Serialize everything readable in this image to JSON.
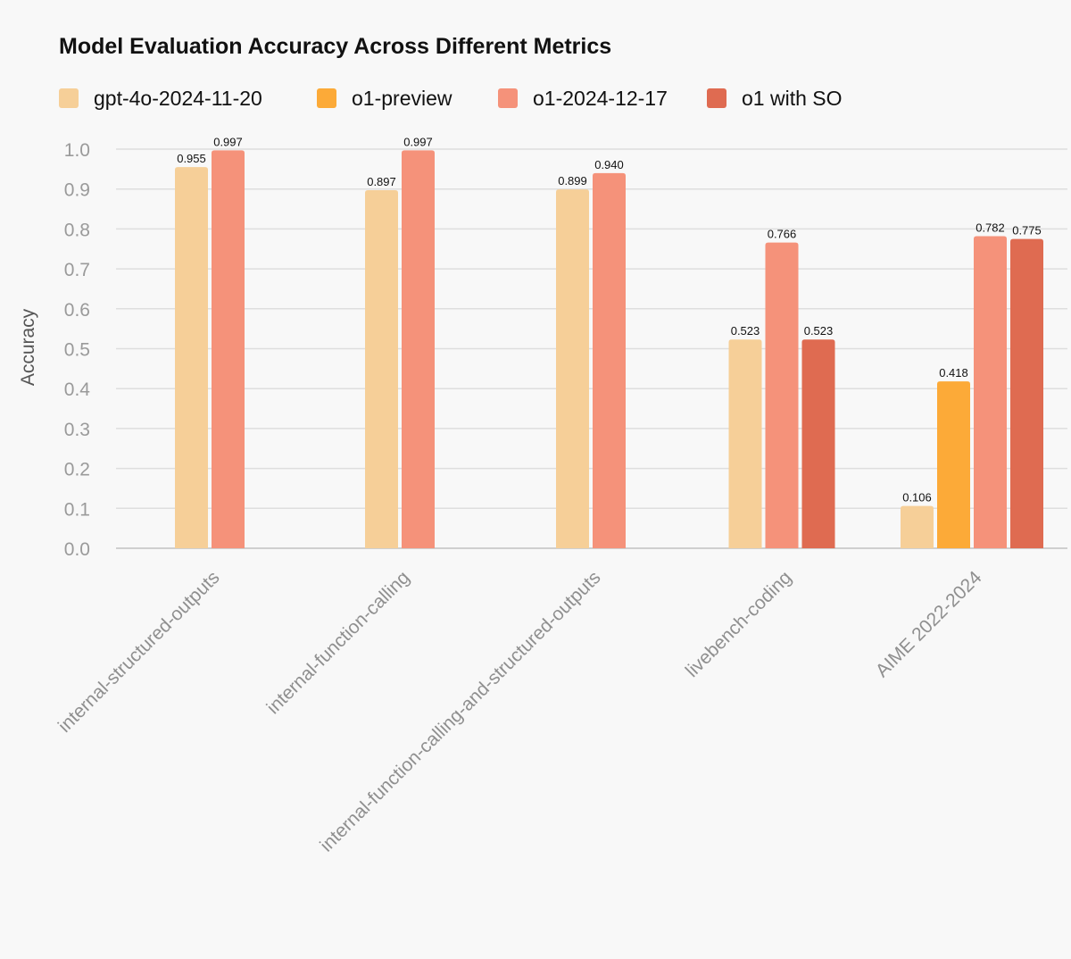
{
  "chart_data": {
    "type": "bar",
    "title": "Model Evaluation Accuracy Across Different Metrics",
    "xlabel": "",
    "ylabel": "Accuracy",
    "ylim": [
      0,
      1.0
    ],
    "yticks": [
      "0.0",
      "0.1",
      "0.2",
      "0.3",
      "0.4",
      "0.5",
      "0.6",
      "0.7",
      "0.8",
      "0.9",
      "1.0"
    ],
    "grid": true,
    "legend_position": "top-left",
    "categories": [
      "internal-structured-outputs",
      "internal-function-calling",
      "internal-function-calling-and-structured-outputs",
      "livebench-coding",
      "AIME 2022-2024"
    ],
    "series": [
      {
        "name": "gpt-4o-2024-11-20",
        "color": "#f6cf98",
        "values": [
          0.955,
          0.897,
          0.899,
          0.523,
          0.106
        ],
        "labels": [
          "0.955",
          "0.897",
          "0.899",
          "0.523",
          "0.106"
        ]
      },
      {
        "name": "o1-preview",
        "color": "#fcaa38",
        "values": [
          null,
          null,
          null,
          null,
          0.418
        ],
        "labels": [
          null,
          null,
          null,
          null,
          "0.418"
        ]
      },
      {
        "name": "o1-2024-12-17",
        "color": "#f5927a",
        "values": [
          0.997,
          0.997,
          0.94,
          0.766,
          0.782
        ],
        "labels": [
          "0.997",
          "0.997",
          "0.940",
          "0.766",
          "0.782"
        ]
      },
      {
        "name": "o1 with SO",
        "color": "#df6b51",
        "values": [
          null,
          null,
          null,
          0.523,
          0.775
        ],
        "labels": [
          null,
          null,
          null,
          "0.523",
          "0.775"
        ]
      }
    ]
  }
}
